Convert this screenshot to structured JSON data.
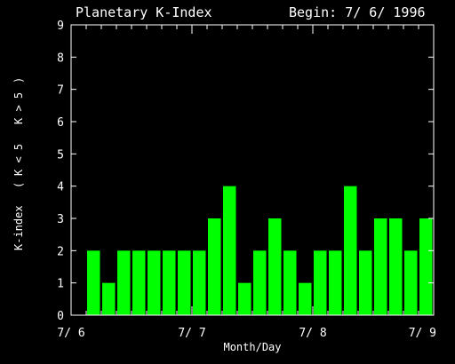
{
  "chart_data": {
    "type": "bar",
    "title": "Planetary K-Index",
    "begin_label": "Begin: 7/ 6/ 1996",
    "xlabel": "Month/Day",
    "ylabel_parts": [
      "K-index",
      "(",
      "K < 5",
      "K > 5",
      ")"
    ],
    "ylim": [
      0,
      9
    ],
    "yticks": [
      "0",
      "1",
      "2",
      "3",
      "4",
      "5",
      "6",
      "7",
      "8",
      "9"
    ],
    "xticks": [
      "7/ 6",
      "7/ 7",
      "7/ 8",
      "7/ 9"
    ],
    "grid": false,
    "colors": {
      "background": "#000000",
      "axes": "#ffffff",
      "bar_low": "#00ff00",
      "bar_high": "#ff0000",
      "text_low": "#00ff00",
      "text_high": "#ff0000"
    },
    "intervals_per_day": 8,
    "values": [
      2,
      1,
      2,
      2,
      2,
      2,
      2,
      2,
      3,
      4,
      1,
      2,
      3,
      2,
      1,
      2,
      2,
      4,
      2,
      3,
      3,
      2,
      3
    ]
  }
}
